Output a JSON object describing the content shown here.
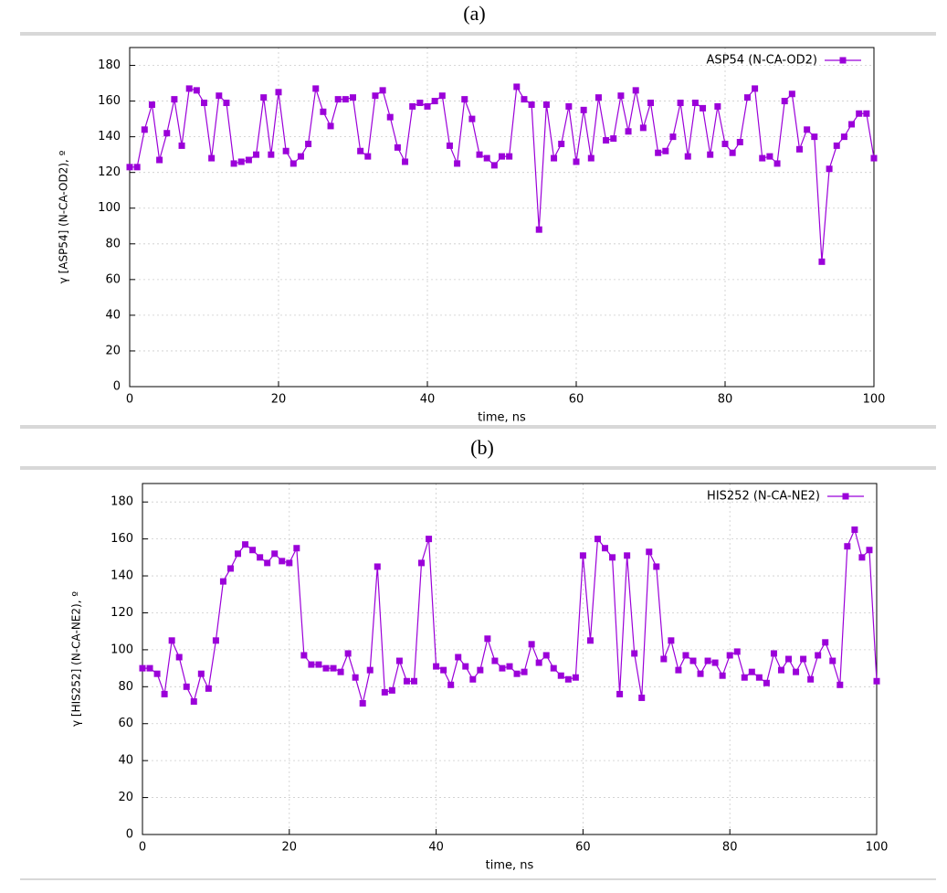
{
  "chart_data": [
    {
      "type": "line",
      "label": "(a)",
      "x_label": "time, ns",
      "y_label": "γ [ASP54] (N-CA-OD2), º",
      "x": [
        0,
        1,
        2,
        3,
        4,
        5,
        6,
        7,
        8,
        9,
        10,
        11,
        12,
        13,
        14,
        15,
        16,
        17,
        18,
        19,
        20,
        21,
        22,
        23,
        24,
        25,
        26,
        27,
        28,
        29,
        30,
        31,
        32,
        33,
        34,
        35,
        36,
        37,
        38,
        39,
        40,
        41,
        42,
        43,
        44,
        45,
        46,
        47,
        48,
        49,
        50,
        51,
        52,
        53,
        54,
        55,
        56,
        57,
        58,
        59,
        60,
        61,
        62,
        63,
        64,
        65,
        66,
        67,
        68,
        69,
        70,
        71,
        72,
        73,
        74,
        75,
        76,
        77,
        78,
        79,
        80,
        81,
        82,
        83,
        84,
        85,
        86,
        87,
        88,
        89,
        90,
        91,
        92,
        93,
        94,
        95,
        96,
        97,
        98,
        99,
        100
      ],
      "series": [
        {
          "name": "ASP54 (N-CA-OD2)",
          "color": "#9b00d9",
          "values": [
            123,
            123,
            144,
            158,
            127,
            142,
            161,
            135,
            167,
            166,
            159,
            128,
            163,
            159,
            125,
            126,
            127,
            130,
            162,
            130,
            165,
            132,
            125,
            129,
            136,
            167,
            154,
            146,
            161,
            161,
            162,
            132,
            129,
            163,
            166,
            151,
            134,
            126,
            157,
            159,
            157,
            160,
            163,
            135,
            125,
            161,
            150,
            130,
            128,
            124,
            129,
            129,
            168,
            161,
            158,
            88,
            158,
            128,
            136,
            157,
            126,
            155,
            128,
            162,
            138,
            139,
            163,
            143,
            166,
            145,
            159,
            131,
            132,
            140,
            159,
            129,
            159,
            156,
            130,
            157,
            136,
            131,
            137,
            162,
            167,
            128,
            129,
            125,
            160,
            164,
            133,
            144,
            140,
            70,
            122,
            135,
            140,
            147,
            153,
            153,
            128
          ]
        }
      ],
      "xlim": [
        0,
        100
      ],
      "xticks": [
        0,
        20,
        40,
        60,
        80,
        100
      ],
      "ylim": [
        0,
        190
      ],
      "yticks": [
        0,
        20,
        40,
        60,
        80,
        100,
        120,
        140,
        160,
        180
      ],
      "grid": true,
      "legend": "top-right"
    },
    {
      "type": "line",
      "label": "(b)",
      "x_label": "time, ns",
      "y_label": "γ [HIS252] (N-CA-NE2), º",
      "x": [
        0,
        1,
        2,
        3,
        4,
        5,
        6,
        7,
        8,
        9,
        10,
        11,
        12,
        13,
        14,
        15,
        16,
        17,
        18,
        19,
        20,
        21,
        22,
        23,
        24,
        25,
        26,
        27,
        28,
        29,
        30,
        31,
        32,
        33,
        34,
        35,
        36,
        37,
        38,
        39,
        40,
        41,
        42,
        43,
        44,
        45,
        46,
        47,
        48,
        49,
        50,
        51,
        52,
        53,
        54,
        55,
        56,
        57,
        58,
        59,
        60,
        61,
        62,
        63,
        64,
        65,
        66,
        67,
        68,
        69,
        70,
        71,
        72,
        73,
        74,
        75,
        76,
        77,
        78,
        79,
        80,
        81,
        82,
        83,
        84,
        85,
        86,
        87,
        88,
        89,
        90,
        91,
        92,
        93,
        94,
        95,
        96,
        97,
        98,
        99,
        100
      ],
      "series": [
        {
          "name": "HIS252 (N-CA-NE2)",
          "color": "#9b00d9",
          "values": [
            90,
            90,
            87,
            76,
            105,
            96,
            80,
            72,
            87,
            79,
            105,
            137,
            144,
            152,
            157,
            154,
            150,
            147,
            152,
            148,
            147,
            155,
            97,
            92,
            92,
            90,
            90,
            88,
            98,
            85,
            71,
            89,
            145,
            77,
            78,
            94,
            83,
            83,
            147,
            160,
            91,
            89,
            81,
            96,
            91,
            84,
            89,
            106,
            94,
            90,
            91,
            87,
            88,
            103,
            93,
            97,
            90,
            86,
            84,
            85,
            151,
            105,
            160,
            155,
            150,
            76,
            151,
            98,
            74,
            153,
            145,
            95,
            105,
            89,
            97,
            94,
            87,
            94,
            93,
            86,
            97,
            99,
            85,
            88,
            85,
            82,
            98,
            89,
            95,
            88,
            95,
            84,
            97,
            104,
            94,
            81,
            156,
            165,
            150,
            154,
            83
          ]
        }
      ],
      "xlim": [
        0,
        100
      ],
      "xticks": [
        0,
        20,
        40,
        60,
        80,
        100
      ],
      "ylim": [
        0,
        190
      ],
      "yticks": [
        0,
        20,
        40,
        60,
        80,
        100,
        120,
        140,
        160,
        180
      ],
      "grid": true,
      "legend": "top-right"
    }
  ]
}
